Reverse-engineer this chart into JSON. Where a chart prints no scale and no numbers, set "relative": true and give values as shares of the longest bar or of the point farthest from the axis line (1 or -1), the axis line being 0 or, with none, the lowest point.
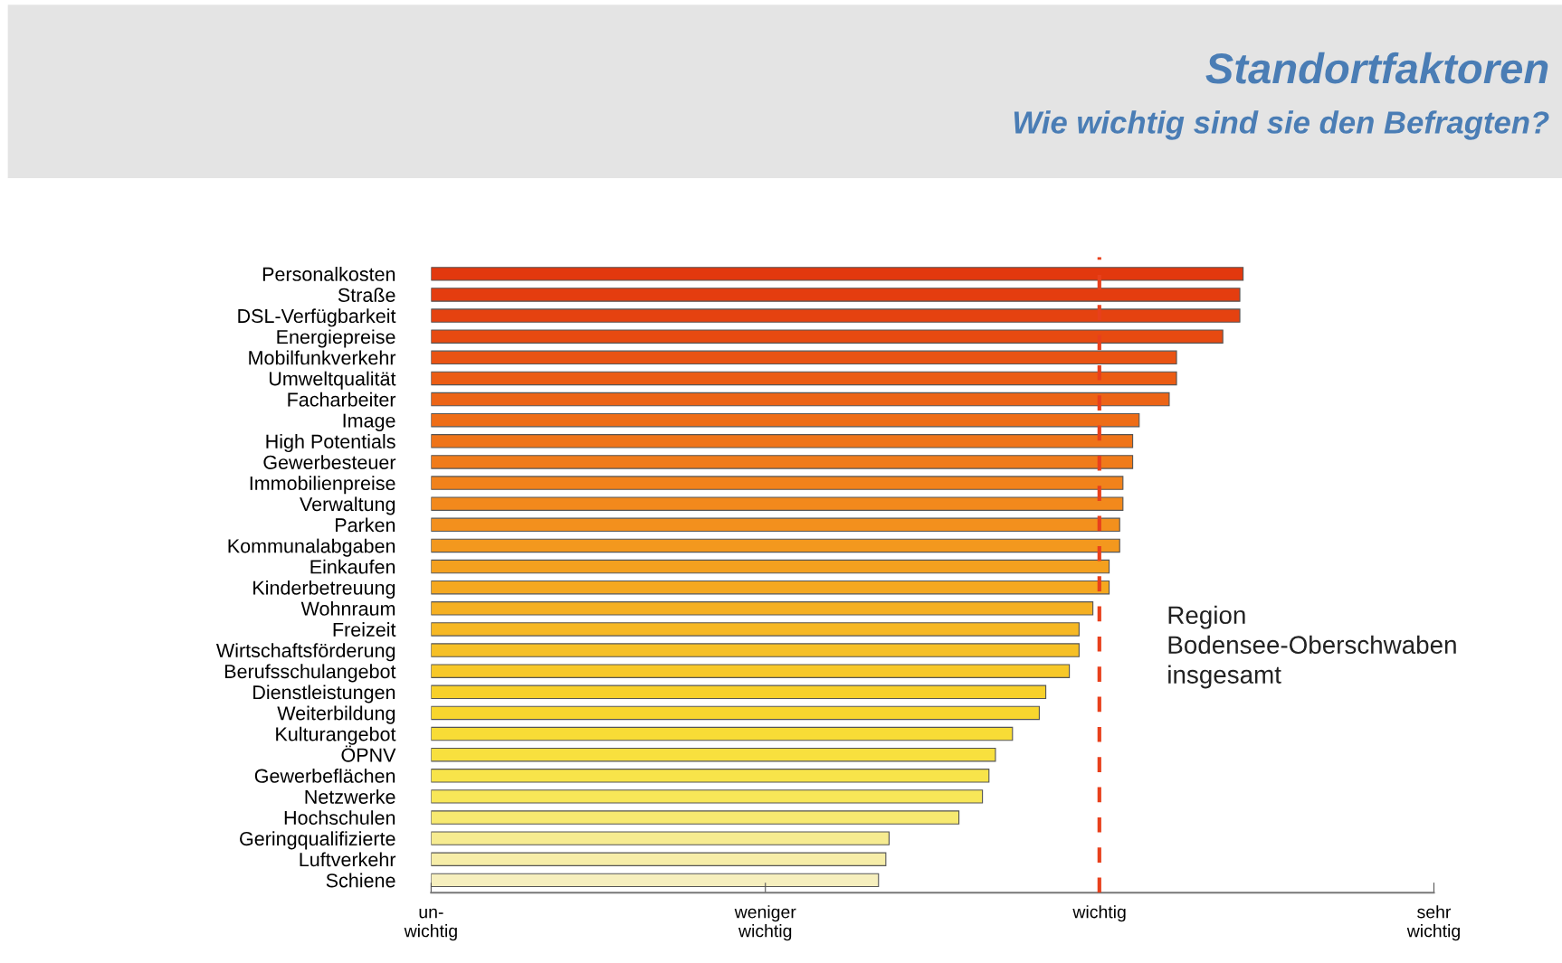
{
  "chart_data": {
    "type": "bar",
    "orientation": "horizontal",
    "title": "Standortfaktoren",
    "subtitle": "Wie wichtig sind sie den Befragten?",
    "categories": [
      "Personalkosten",
      "Straße",
      "DSL-Verfügbarkeit",
      "Energiepreise",
      "Mobilfunkverkehr",
      "Umweltqualität",
      "Facharbeiter",
      "Image",
      "High Potentials",
      "Gewerbesteuer",
      "Immobilienpreise",
      "Verwaltung",
      "Parken",
      "Kommunalabgaben",
      "Einkaufen",
      "Kinderbetreuung",
      "Wohnraum",
      "Freizeit",
      "Wirtschaftsförderung",
      "Berufsschulangebot",
      "Dienstleistungen",
      "Weiterbildung",
      "Kulturangebot",
      "ÖPNV",
      "Gewerbeflächen",
      "Netzwerke",
      "Hochschulen",
      "Geringqualifizierte",
      "Luftverkehr",
      "Schiene"
    ],
    "relative": true,
    "values": [
      1,
      0.996,
      0.996,
      0.975,
      0.918,
      0.918,
      0.909,
      0.872,
      0.864,
      0.864,
      0.852,
      0.852,
      0.848,
      0.848,
      0.835,
      0.835,
      0.815,
      0.798,
      0.798,
      0.786,
      0.757,
      0.749,
      0.716,
      0.695,
      0.687,
      0.679,
      0.65,
      0.564,
      0.56,
      0.551
    ],
    "colors": [
      "#e2380e",
      "#e43d0f",
      "#e54210",
      "#e74a11",
      "#e95313",
      "#eb5c14",
      "#ec6416",
      "#ee6d17",
      "#ef7419",
      "#f07b1a",
      "#f1821b",
      "#f2891c",
      "#f3901d",
      "#f3981e",
      "#f4a01f",
      "#f5a820",
      "#f5b022",
      "#f6b824",
      "#f6c026",
      "#f7c828",
      "#f7d02a",
      "#f8d62e",
      "#f8dc36",
      "#f8e03e",
      "#f8e44a",
      "#f8e758",
      "#f7e970",
      "#f6eb90",
      "#f6eda8",
      "#f6efbe"
    ],
    "xlim": [
      0,
      1.235
    ],
    "ref_lines": [
      {
        "axis": "x",
        "value": 0.823,
        "color": "#e8401c",
        "line_style": "dashed"
      }
    ],
    "annotations": [
      "Region\nBodensee-Oberschwaben\ninsgesamt",
      "un-\nwichtig",
      "weniger\nwichtig",
      "wichtig",
      "sehr\nwichtig"
    ],
    "grid": false,
    "legend": false
  }
}
